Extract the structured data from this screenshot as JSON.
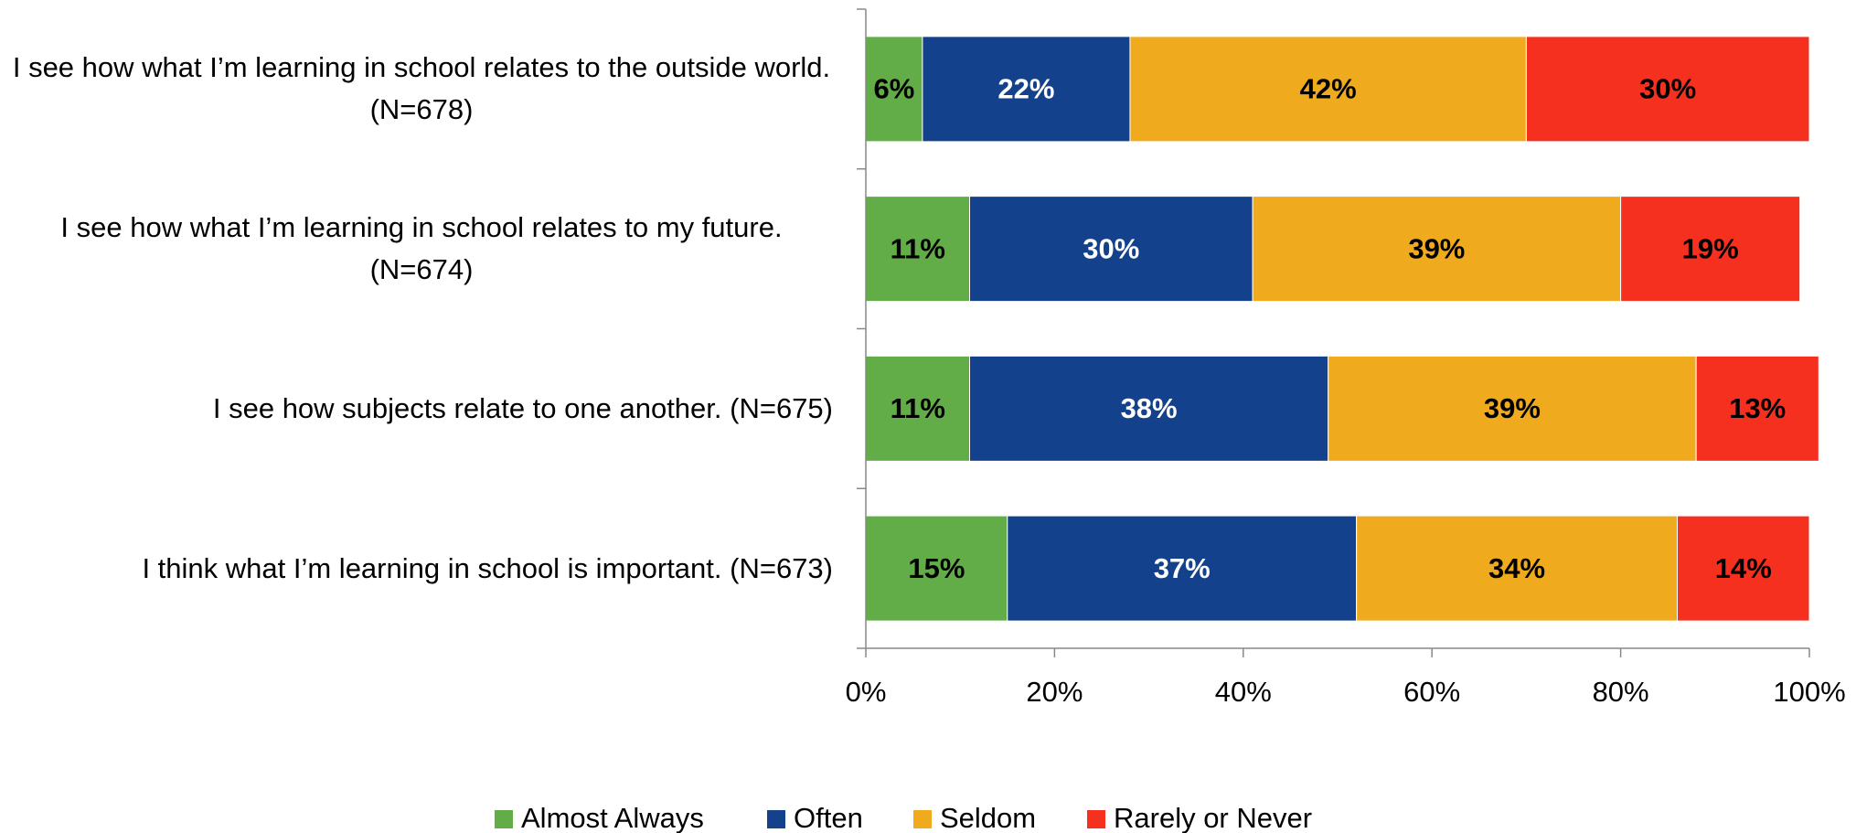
{
  "chart_data": {
    "type": "stacked_barh",
    "categories": [
      "I see how what I’m learning in school relates to the outside world. (N=678)",
      "I see how what I’m learning in school relates to my future. (N=674)",
      "I see how subjects relate to one another. (N=675)",
      "I think what I’m learning in school is important. (N=673)"
    ],
    "series": [
      {
        "name": "Almost Always",
        "color": "#62ad47",
        "label_color": "#000000",
        "values": [
          6,
          11,
          11,
          15
        ],
        "value_labels": [
          "6%",
          "11%",
          "11%",
          "15%"
        ]
      },
      {
        "name": "Often",
        "color": "#14418b",
        "label_color": "#ffffff",
        "values": [
          22,
          30,
          38,
          37
        ],
        "value_labels": [
          "22%",
          "30%",
          "38%",
          "37%"
        ]
      },
      {
        "name": "Seldom",
        "color": "#f0aa1e",
        "label_color": "#000000",
        "values": [
          42,
          39,
          39,
          34
        ],
        "value_labels": [
          "42%",
          "39%",
          "39%",
          "34%"
        ]
      },
      {
        "name": "Rarely or Never",
        "color": "#f5301f",
        "label_color": "#000000",
        "values": [
          30,
          19,
          13,
          14
        ],
        "value_labels": [
          "30%",
          "19%",
          "13%",
          "14%"
        ]
      }
    ],
    "xlim": [
      0,
      100
    ],
    "xticks": [
      {
        "value": 0,
        "label": "0%"
      },
      {
        "value": 20,
        "label": "20%"
      },
      {
        "value": 40,
        "label": "40%"
      },
      {
        "value": 60,
        "label": "60%"
      },
      {
        "value": 80,
        "label": "80%"
      },
      {
        "value": 100,
        "label": "100%"
      }
    ],
    "legend": "bottom"
  }
}
